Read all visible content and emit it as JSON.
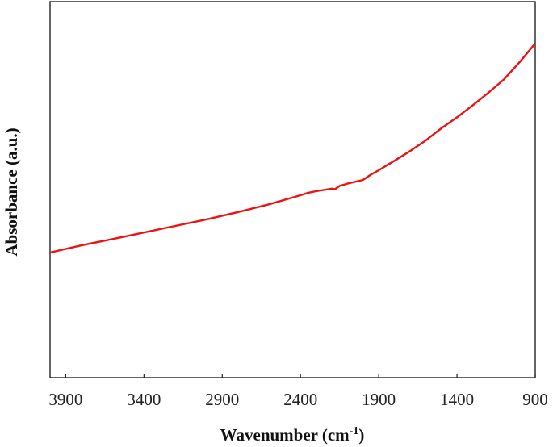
{
  "chart_data": {
    "type": "line",
    "title": "",
    "xlabel": "Wavenumber (cm",
    "xlabel_sup": "-1",
    "xlabel_close": ")",
    "ylabel": "Absorbance (a.u.)",
    "x_reversed": true,
    "xlim": [
      4000,
      900
    ],
    "ylim": [
      0,
      1
    ],
    "y_ticks_shown": false,
    "grid": false,
    "legend": "none",
    "xticks": [
      3900,
      3400,
      2900,
      2400,
      1900,
      1400,
      900
    ],
    "xtick_labels": [
      "3900",
      "3400",
      "2900",
      "2400",
      "1900",
      "1400",
      "900"
    ],
    "series": [
      {
        "color": "#ee1111",
        "x": [
          4000,
          3800,
          3600,
          3400,
          3200,
          3000,
          2800,
          2600,
          2400,
          2350,
          2300,
          2200,
          2180,
          2150,
          2100,
          2000,
          1950,
          1900,
          1800,
          1700,
          1600,
          1500,
          1400,
          1300,
          1200,
          1100,
          1000,
          900
        ],
        "y": [
          0.392,
          0.415,
          0.435,
          0.456,
          0.477,
          0.498,
          0.521,
          0.546,
          0.575,
          0.583,
          0.588,
          0.596,
          0.594,
          0.605,
          0.612,
          0.624,
          0.641,
          0.655,
          0.685,
          0.716,
          0.75,
          0.789,
          0.824,
          0.862,
          0.902,
          0.945,
          1.0,
          1.06
        ]
      }
    ]
  }
}
